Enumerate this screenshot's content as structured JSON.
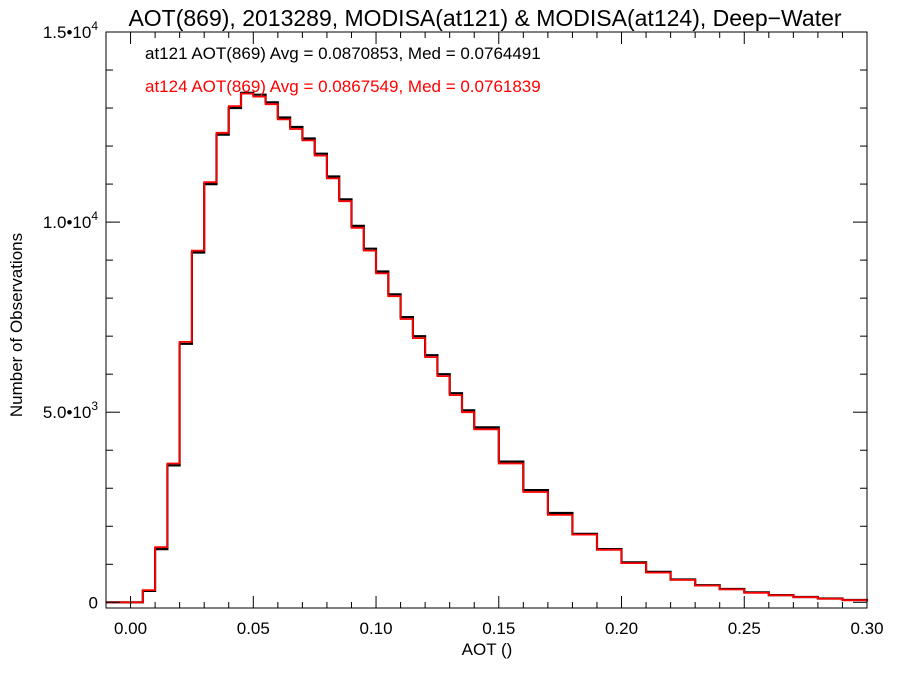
{
  "chart_data": {
    "type": "line",
    "title": "AOT(869), 2013289, MODISA(at121) & MODISA(at124), Deep−Water",
    "xlabel": "AOT ()",
    "ylabel": "Number of Observations",
    "xlim": [
      -0.01,
      0.3
    ],
    "ylim": [
      -150,
      15000
    ],
    "x_ticks": [
      {
        "value": 0.0,
        "label": "0.00"
      },
      {
        "value": 0.05,
        "label": "0.05"
      },
      {
        "value": 0.1,
        "label": "0.10"
      },
      {
        "value": 0.15,
        "label": "0.15"
      },
      {
        "value": 0.2,
        "label": "0.20"
      },
      {
        "value": 0.25,
        "label": "0.25"
      },
      {
        "value": 0.3,
        "label": "0.30"
      }
    ],
    "y_ticks": [
      {
        "value": 0,
        "mantissa": "0",
        "exp": ""
      },
      {
        "value": 5000,
        "mantissa": "5.0•10",
        "exp": "3"
      },
      {
        "value": 10000,
        "mantissa": "1.0•10",
        "exp": "4"
      },
      {
        "value": 15000,
        "mantissa": "1.5•10",
        "exp": "4"
      }
    ],
    "series": [
      {
        "name": "at121",
        "color": "#000000",
        "x": [
          -0.01,
          0.0,
          0.005,
          0.01,
          0.015,
          0.02,
          0.025,
          0.03,
          0.035,
          0.04,
          0.045,
          0.05,
          0.055,
          0.06,
          0.065,
          0.07,
          0.075,
          0.08,
          0.085,
          0.09,
          0.095,
          0.1,
          0.105,
          0.11,
          0.115,
          0.12,
          0.125,
          0.13,
          0.135,
          0.14,
          0.15,
          0.16,
          0.17,
          0.18,
          0.19,
          0.2,
          0.21,
          0.22,
          0.23,
          0.24,
          0.25,
          0.26,
          0.27,
          0.28,
          0.29,
          0.3
        ],
        "y": [
          0,
          0,
          300,
          1400,
          3600,
          6800,
          9200,
          11000,
          12300,
          13000,
          13400,
          13350,
          13150,
          12750,
          12500,
          12200,
          11800,
          11200,
          10600,
          9900,
          9300,
          8700,
          8100,
          7500,
          7000,
          6500,
          6000,
          5500,
          5050,
          4600,
          3700,
          2950,
          2350,
          1800,
          1400,
          1050,
          800,
          600,
          450,
          350,
          260,
          190,
          140,
          100,
          60,
          30
        ]
      },
      {
        "name": "at124",
        "color": "#ff0000",
        "x": [
          -0.01,
          0.0,
          0.005,
          0.01,
          0.015,
          0.02,
          0.025,
          0.03,
          0.035,
          0.04,
          0.045,
          0.05,
          0.055,
          0.06,
          0.065,
          0.07,
          0.075,
          0.08,
          0.085,
          0.09,
          0.095,
          0.1,
          0.105,
          0.11,
          0.115,
          0.12,
          0.125,
          0.13,
          0.135,
          0.14,
          0.15,
          0.16,
          0.17,
          0.18,
          0.19,
          0.2,
          0.21,
          0.22,
          0.23,
          0.24,
          0.25,
          0.26,
          0.27,
          0.28,
          0.29,
          0.3
        ],
        "y": [
          0,
          0,
          320,
          1450,
          3650,
          6850,
          9250,
          11050,
          12350,
          13050,
          13380,
          13300,
          13100,
          12700,
          12450,
          12150,
          11750,
          11150,
          10550,
          9850,
          9250,
          8650,
          8050,
          7450,
          6950,
          6450,
          5950,
          5450,
          5000,
          4550,
          3650,
          2900,
          2300,
          1780,
          1380,
          1030,
          780,
          590,
          440,
          340,
          250,
          185,
          135,
          95,
          55,
          25
        ]
      }
    ],
    "legend": [
      {
        "text": "at121 AOT(869) Avg = 0.0870853, Med = 0.0764491",
        "color": "#000000"
      },
      {
        "text": "at124 AOT(869) Avg = 0.0867549, Med = 0.0761839",
        "color": "#ff0000"
      }
    ],
    "legend_placement": "top-left",
    "grid": false
  }
}
